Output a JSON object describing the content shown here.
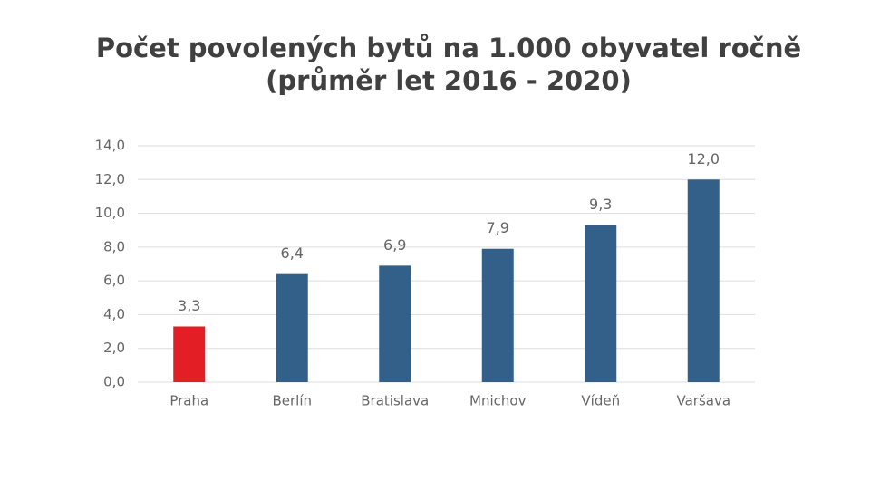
{
  "chart_data": {
    "type": "bar",
    "title": [
      "Počet povolených bytů na 1.000 obyvatel ročně",
      "(průměr let 2016 - 2020)"
    ],
    "categories": [
      "Praha",
      "Berlín",
      "Bratislava",
      "Mnichov",
      "Vídeň",
      "Varšava"
    ],
    "values": [
      3.3,
      6.4,
      6.9,
      7.9,
      9.3,
      12.0
    ],
    "value_labels": [
      "3,3",
      "6,4",
      "6,9",
      "7,9",
      "9,3",
      "12,0"
    ],
    "colors": [
      "#e31e24",
      "#336088",
      "#336088",
      "#336088",
      "#336088",
      "#336088"
    ],
    "ylim": [
      0,
      14
    ],
    "yticks": [
      {
        "value": 0,
        "label": "0,0"
      },
      {
        "value": 2,
        "label": "2,0"
      },
      {
        "value": 4,
        "label": "4,0"
      },
      {
        "value": 6,
        "label": "6,0"
      },
      {
        "value": 8,
        "label": "8,0"
      },
      {
        "value": 10,
        "label": "10,0"
      },
      {
        "value": 12,
        "label": "12,0"
      },
      {
        "value": 14,
        "label": "14,0"
      }
    ],
    "grid": true
  }
}
